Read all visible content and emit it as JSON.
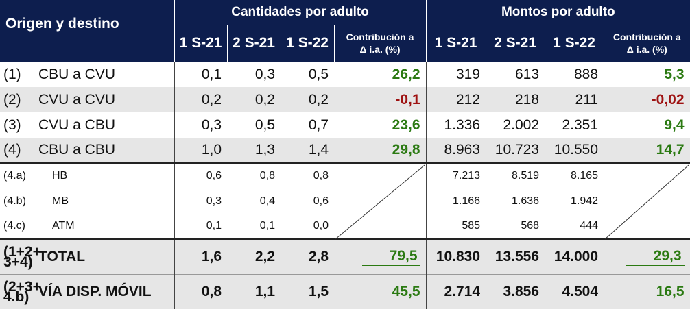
{
  "header": {
    "title": "Origen y destino",
    "group_quantities": "Cantidades por adulto",
    "group_amounts": "Montos por adulto",
    "periods": [
      "1 S-21",
      "2 S-21",
      "1 S-22"
    ],
    "contrib_line1": "Contribución a",
    "contrib_line2": "Δ i.a. (%)"
  },
  "rows": [
    {
      "code": "(1)",
      "name": "CBU a CVU",
      "q": [
        "0,1",
        "0,3",
        "0,5"
      ],
      "qc": "26,2",
      "m": [
        "319",
        "613",
        "888"
      ],
      "mc": "5,3"
    },
    {
      "code": "(2)",
      "name": "CVU a CVU",
      "q": [
        "0,2",
        "0,2",
        "0,2"
      ],
      "qc": "-0,1",
      "m": [
        "212",
        "218",
        "211"
      ],
      "mc": "-0,02"
    },
    {
      "code": "(3)",
      "name": "CVU a CBU",
      "q": [
        "0,3",
        "0,5",
        "0,7"
      ],
      "qc": "23,6",
      "m": [
        "1.336",
        "2.002",
        "2.351"
      ],
      "mc": "9,4"
    },
    {
      "code": "(4)",
      "name": "CBU a CBU",
      "q": [
        "1,0",
        "1,3",
        "1,4"
      ],
      "qc": "29,8",
      "m": [
        "8.963",
        "10.723",
        "10.550"
      ],
      "mc": "14,7"
    }
  ],
  "subrows": [
    {
      "code": "(4.a)",
      "name": "HB",
      "q": [
        "0,6",
        "0,8",
        "0,8"
      ],
      "m": [
        "7.213",
        "8.519",
        "8.165"
      ]
    },
    {
      "code": "(4.b)",
      "name": "MB",
      "q": [
        "0,3",
        "0,4",
        "0,6"
      ],
      "m": [
        "1.166",
        "1.636",
        "1.942"
      ]
    },
    {
      "code": "(4.c)",
      "name": "ATM",
      "q": [
        "0,1",
        "0,1",
        "0,0"
      ],
      "m": [
        "585",
        "568",
        "444"
      ]
    }
  ],
  "totals": [
    {
      "code1": "(1+2+",
      "code2": "3+4)",
      "name": "TOTAL",
      "q": [
        "1,6",
        "2,2",
        "2,8"
      ],
      "qc": "79,5",
      "m": [
        "10.830",
        "13.556",
        "14.000"
      ],
      "mc": "29,3"
    },
    {
      "code1": "(2+3+",
      "code2": "4.b)",
      "name": "VÍA DISP. MÓVIL",
      "q": [
        "0,8",
        "1,1",
        "1,5"
      ],
      "qc": "45,5",
      "m": [
        "2.714",
        "3.856",
        "4.504"
      ],
      "mc": "16,5"
    }
  ],
  "colors": {
    "header_bg": "#0d1e4e",
    "positive": "#2b7a12",
    "negative": "#9e1212",
    "stripe": "#e6e6e6"
  }
}
